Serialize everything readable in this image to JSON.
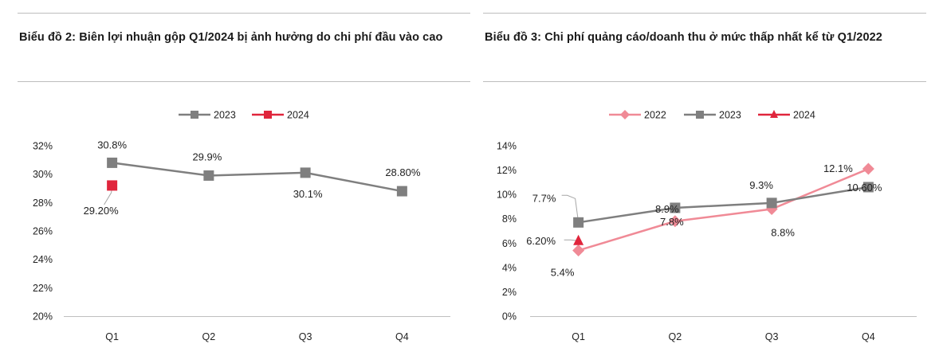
{
  "left_title": "Biểu đồ 2: Biên lợi nhuận gộp Q1/2024 bị ảnh hưởng do chi phí đầu vào cao",
  "right_title": "Biểu đồ 3: Chi phí quảng cáo/doanh thu ở mức thấp nhất kể từ Q1/2022",
  "colors": {
    "series_2022": "#f08a96",
    "series_2023": "#7f7f7f",
    "series_2024": "#e0253c"
  },
  "chart_data": [
    {
      "type": "line",
      "title": "Biểu đồ 2: Biên lợi nhuận gộp Q1/2024 bị ảnh hưởng do chi phí đầu vào cao",
      "categories": [
        "Q1",
        "Q2",
        "Q3",
        "Q4"
      ],
      "ylim": [
        20,
        32
      ],
      "yticks": [
        20,
        22,
        24,
        26,
        28,
        30,
        32
      ],
      "ytick_labels": [
        "20%",
        "22%",
        "24%",
        "26%",
        "28%",
        "30%",
        "32%"
      ],
      "legend": "top-center",
      "series": [
        {
          "name": "2023",
          "marker": "square",
          "values": [
            30.8,
            29.9,
            30.1,
            28.8
          ],
          "labels": [
            "30.8%",
            "29.9%",
            "30.1%",
            "28.80%"
          ]
        },
        {
          "name": "2024",
          "marker": "square",
          "values": [
            29.2,
            null,
            null,
            null
          ],
          "labels": [
            "29.20%",
            null,
            null,
            null
          ]
        }
      ]
    },
    {
      "type": "line",
      "title": "Biểu đồ 3: Chi phí quảng cáo/doanh thu ở mức thấp nhất kể từ Q1/2022",
      "categories": [
        "Q1",
        "Q2",
        "Q3",
        "Q4"
      ],
      "ylim": [
        0,
        14
      ],
      "yticks": [
        0,
        2,
        4,
        6,
        8,
        10,
        12,
        14
      ],
      "ytick_labels": [
        "0%",
        "2%",
        "4%",
        "6%",
        "8%",
        "10%",
        "12%",
        "14%"
      ],
      "legend": "top-center",
      "series": [
        {
          "name": "2022",
          "marker": "diamond",
          "values": [
            5.4,
            7.8,
            8.8,
            12.1
          ],
          "labels": [
            "5.4%",
            "7.8%",
            "8.8%",
            "12.1%"
          ]
        },
        {
          "name": "2023",
          "marker": "square",
          "values": [
            7.7,
            8.9,
            9.3,
            10.6
          ],
          "labels": [
            "7.7%",
            "8.9%",
            "9.3%",
            "10.60%"
          ]
        },
        {
          "name": "2024",
          "marker": "triangle",
          "values": [
            6.2,
            null,
            null,
            null
          ],
          "labels": [
            "6.20%",
            null,
            null,
            null
          ]
        }
      ]
    }
  ]
}
